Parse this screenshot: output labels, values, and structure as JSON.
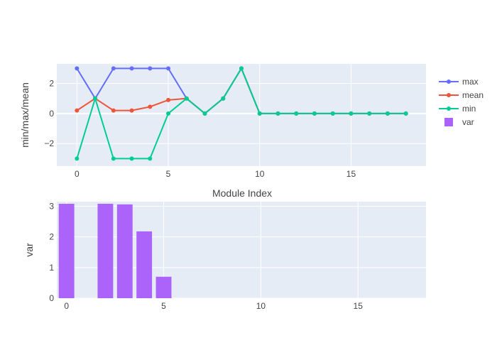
{
  "colors": {
    "plot_bg": "#e5ecf6",
    "grid": "#ffffff",
    "text": "#444444",
    "max": "#636efa",
    "mean": "#ef553b",
    "min": "#00cc96",
    "var": "#ab63fa"
  },
  "chart_data": [
    {
      "type": "line",
      "xlabel": "Module Index",
      "ylabel": "min/max/mean",
      "xlim": [
        -1.1,
        19.1
      ],
      "ylim": [
        -3.5,
        3.3
      ],
      "xticks": [
        0,
        5,
        10,
        15
      ],
      "yticks": [
        -2,
        0,
        2
      ],
      "grid": true,
      "legend": "right",
      "x": [
        0,
        1,
        2,
        3,
        4,
        5,
        6,
        7,
        8,
        9,
        10,
        11,
        12,
        13,
        14,
        15,
        16,
        17,
        18
      ],
      "series": [
        {
          "name": "max",
          "values": [
            3,
            1,
            3,
            3,
            3,
            3,
            1,
            0,
            1,
            3,
            0,
            0,
            0,
            0,
            0,
            0,
            0,
            0,
            0
          ]
        },
        {
          "name": "mean",
          "values": [
            0.2,
            1,
            0.2,
            0.2,
            0.45,
            0.9,
            1,
            0,
            1,
            3,
            0,
            0,
            0,
            0,
            0,
            0,
            0,
            0,
            0
          ]
        },
        {
          "name": "min",
          "values": [
            -3,
            1,
            -3,
            -3,
            -3,
            0,
            1,
            0,
            1,
            3,
            0,
            0,
            0,
            0,
            0,
            0,
            0,
            0,
            0
          ]
        }
      ]
    },
    {
      "type": "bar",
      "ylabel": "var",
      "xlim": [
        -0.5,
        18.5
      ],
      "ylim": [
        0,
        3.15
      ],
      "xticks": [
        0,
        5,
        10,
        15
      ],
      "yticks": [
        0,
        1,
        2,
        3
      ],
      "grid": true,
      "series": [
        {
          "name": "var",
          "values": [
            3.08,
            0,
            3.08,
            3.06,
            2.18,
            0.7,
            0,
            0,
            0,
            0,
            0,
            0,
            0,
            0,
            0,
            0,
            0,
            0,
            0
          ]
        }
      ],
      "x": [
        0,
        1,
        2,
        3,
        4,
        5,
        6,
        7,
        8,
        9,
        10,
        11,
        12,
        13,
        14,
        15,
        16,
        17,
        18
      ]
    }
  ]
}
